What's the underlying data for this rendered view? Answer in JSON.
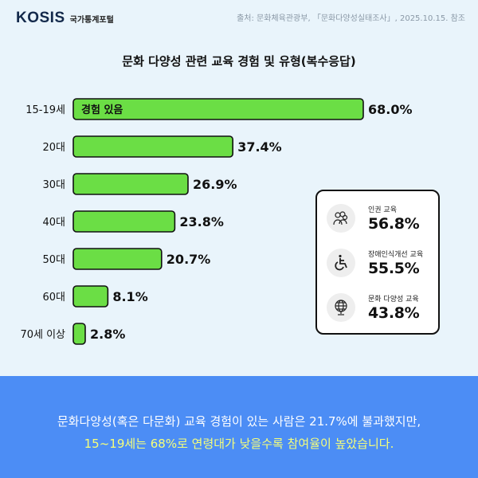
{
  "header": {
    "logo_text": "KOSIS",
    "logo_sub": "국가통계포털",
    "source": "출처: 문화체육관광부, 「문화다양성실태조사」, 2025.10.15. 참조"
  },
  "chart_data": {
    "type": "bar",
    "orientation": "horizontal",
    "title": "문화 다양성 관련 교육 경험 및 유형(복수응답)",
    "categories": [
      "15-19세",
      "20대",
      "30대",
      "40대",
      "50대",
      "60대",
      "70세 이상"
    ],
    "series": [
      {
        "name": "경험 있음",
        "values": [
          68.0,
          37.4,
          26.9,
          23.8,
          20.7,
          8.1,
          2.8
        ]
      }
    ],
    "value_labels": [
      "68.0%",
      "37.4%",
      "26.9%",
      "23.8%",
      "20.7%",
      "8.1%",
      "2.8%"
    ],
    "unit": "%",
    "xlim": [
      0,
      100
    ],
    "grid": false,
    "bar_color": "#6bde45",
    "bar_border_color": "#111111"
  },
  "panel": {
    "items": [
      {
        "label": "인권 교육",
        "value": "56.8%",
        "icon": "people-icon"
      },
      {
        "label": "장애인식개선 교육",
        "value": "55.5%",
        "icon": "wheelchair-icon"
      },
      {
        "label": "문화 다양성 교육",
        "value": "43.8%",
        "icon": "globe-icon"
      }
    ]
  },
  "footer": {
    "line1": "문화다양성(혹은 다문화) 교육 경험이 있는 사람은 21.7%에 불과했지만,",
    "line2": "15~19세는 68%로 연령대가 낮을수록 참여율이 높았습니다."
  },
  "colors": {
    "background": "#e9f4fb",
    "footer": "#4c8df5",
    "highlight_text": "#f6ff7a"
  }
}
